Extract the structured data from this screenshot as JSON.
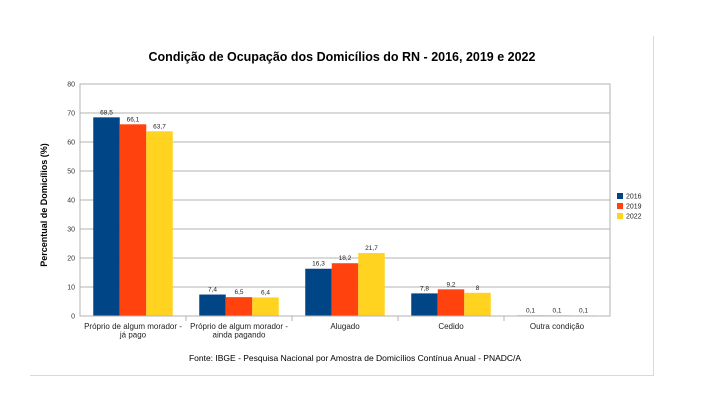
{
  "chart_data": {
    "type": "bar",
    "title": "Condição de Ocupação dos Domicílios do RN - 2016, 2019 e 2022",
    "xlabel": "",
    "ylabel": "Percentual de Domicílios (%)",
    "ylim": [
      0,
      80
    ],
    "yticks": [
      0,
      10,
      20,
      30,
      40,
      50,
      60,
      70,
      80
    ],
    "grid": true,
    "legend_position": "right",
    "categories": [
      [
        "Próprio de algum morador -",
        "já pago"
      ],
      [
        "Próprio de algum morador -",
        "ainda pagando"
      ],
      [
        "Alugado"
      ],
      [
        "Cedido"
      ],
      [
        "Outra condição"
      ]
    ],
    "series": [
      {
        "name": "2016",
        "color": "#004586",
        "values": [
          68.5,
          7.4,
          16.3,
          7.8,
          0.1
        ],
        "labels": [
          "68,5",
          "7,4",
          "16,3",
          "7,8",
          "0,1"
        ]
      },
      {
        "name": "2019",
        "color": "#ff420e",
        "values": [
          66.1,
          6.5,
          18.2,
          9.2,
          0.1
        ],
        "labels": [
          "66,1",
          "6,5",
          "18,2",
          "9,2",
          "0,1"
        ]
      },
      {
        "name": "2022",
        "color": "#ffd320",
        "values": [
          63.7,
          6.4,
          21.7,
          8,
          0.1
        ],
        "labels": [
          "63,7",
          "6,4",
          "21,7",
          "8",
          "0,1"
        ]
      }
    ],
    "source": "Fonte: IBGE - Pesquisa Nacional por Amostra de Domicílios Contínua Anual - PNADC/A"
  }
}
